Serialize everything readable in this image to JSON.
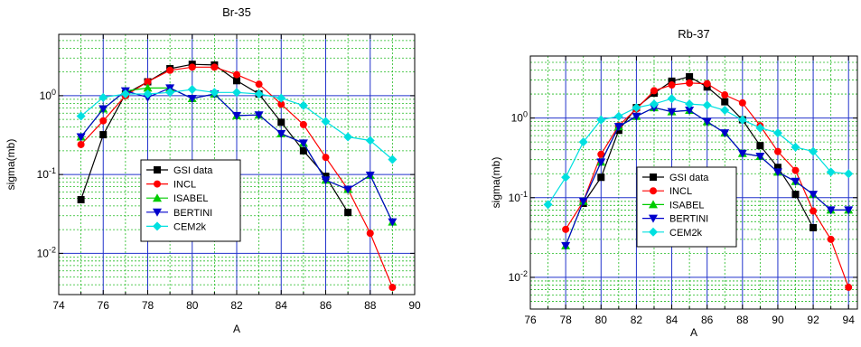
{
  "chart_data": [
    {
      "type": "line",
      "title": "Br-35",
      "xlabel": "A",
      "ylabel": "sigma(mb)",
      "xlim": [
        74,
        90
      ],
      "ylim": [
        0.003,
        6
      ],
      "yscale": "log",
      "grid": true,
      "legend_position": "center-left",
      "xticks": [
        "74",
        "76",
        "78",
        "80",
        "82",
        "84",
        "86",
        "88",
        "90"
      ],
      "yticks": [
        {
          "base": "10",
          "exp": "-2",
          "value": 0.01
        },
        {
          "base": "10",
          "exp": "-1",
          "value": 0.1
        },
        {
          "base": "10",
          "exp": "0",
          "value": 1
        }
      ],
      "series": [
        {
          "name": "GSI data",
          "color": "#000000",
          "marker": "square",
          "x": [
            75,
            76,
            77,
            78,
            79,
            80,
            81,
            82,
            83,
            84,
            85,
            86,
            87
          ],
          "y": [
            0.048,
            0.32,
            1.05,
            1.5,
            2.2,
            2.5,
            2.45,
            1.55,
            1.05,
            0.46,
            0.2,
            0.095,
            0.033
          ]
        },
        {
          "name": "INCL",
          "color": "#ff0000",
          "marker": "circle",
          "x": [
            75,
            76,
            77,
            78,
            79,
            80,
            81,
            82,
            83,
            84,
            85,
            86,
            87,
            88,
            89
          ],
          "y": [
            0.24,
            0.48,
            1.0,
            1.5,
            2.1,
            2.3,
            2.3,
            1.85,
            1.4,
            0.78,
            0.43,
            0.165,
            0.065,
            0.018,
            0.0037
          ]
        },
        {
          "name": "ISABEL",
          "color": "#00cc00",
          "marker": "triangle-up",
          "x": [
            75,
            76,
            77,
            78,
            79,
            80,
            81,
            82,
            83,
            84,
            85,
            86,
            87,
            88,
            89
          ],
          "y": [
            0.3,
            0.68,
            1.15,
            1.25,
            1.25,
            0.92,
            1.05,
            0.56,
            0.57,
            0.33,
            0.25,
            0.085,
            0.065,
            0.098,
            0.025
          ]
        },
        {
          "name": "BERTINI",
          "color": "#0000cc",
          "marker": "triangle-down",
          "x": [
            75,
            76,
            77,
            78,
            79,
            80,
            81,
            82,
            83,
            84,
            85,
            86,
            87,
            88,
            89
          ],
          "y": [
            0.3,
            0.68,
            1.15,
            0.95,
            1.25,
            0.92,
            1.05,
            0.56,
            0.57,
            0.33,
            0.25,
            0.085,
            0.065,
            0.098,
            0.025
          ]
        },
        {
          "name": "CEM2k",
          "color": "#00e0e0",
          "marker": "diamond",
          "x": [
            75,
            76,
            77,
            78,
            79,
            80,
            81,
            82,
            83,
            84,
            85,
            86,
            87,
            88,
            89
          ],
          "y": [
            0.55,
            0.95,
            1.05,
            1.05,
            1.1,
            1.2,
            1.1,
            1.1,
            1.05,
            0.93,
            0.75,
            0.47,
            0.3,
            0.27,
            0.155
          ]
        }
      ]
    },
    {
      "type": "line",
      "title": "Rb-37",
      "xlabel": "A",
      "ylabel": "sigma(mb)",
      "xlim": [
        76,
        94.5
      ],
      "ylim": [
        0.004,
        6
      ],
      "yscale": "log",
      "grid": true,
      "legend_position": "center",
      "xticks": [
        "76",
        "78",
        "80",
        "82",
        "84",
        "86",
        "88",
        "90",
        "92",
        "94"
      ],
      "yticks": [
        {
          "base": "10",
          "exp": "-2",
          "value": 0.01
        },
        {
          "base": "10",
          "exp": "-1",
          "value": 0.1
        },
        {
          "base": "10",
          "exp": "0",
          "value": 1
        }
      ],
      "series": [
        {
          "name": "GSI data",
          "color": "#000000",
          "marker": "square",
          "x": [
            79,
            80,
            81,
            82,
            83,
            84,
            85,
            86,
            87,
            88,
            89,
            90,
            91,
            92
          ],
          "y": [
            0.085,
            0.18,
            0.7,
            1.35,
            2.05,
            2.9,
            3.3,
            2.45,
            1.6,
            0.95,
            0.45,
            0.24,
            0.11,
            0.042
          ]
        },
        {
          "name": "INCL",
          "color": "#ff0000",
          "marker": "circle",
          "x": [
            78,
            79,
            80,
            81,
            82,
            83,
            84,
            85,
            86,
            87,
            88,
            89,
            90,
            91,
            92,
            93,
            94
          ],
          "y": [
            0.04,
            0.09,
            0.35,
            0.8,
            1.3,
            2.2,
            2.6,
            2.75,
            2.7,
            1.95,
            1.55,
            0.8,
            0.38,
            0.22,
            0.068,
            0.03,
            0.0075
          ]
        },
        {
          "name": "ISABEL",
          "color": "#00cc00",
          "marker": "triangle-up",
          "x": [
            78,
            79,
            80,
            81,
            82,
            83,
            84,
            85,
            86,
            87,
            88,
            89,
            90,
            91,
            92,
            93,
            94
          ],
          "y": [
            0.025,
            0.09,
            0.28,
            0.78,
            1.05,
            1.35,
            1.2,
            1.25,
            0.9,
            0.65,
            0.36,
            0.33,
            0.21,
            0.16,
            0.11,
            0.07,
            0.07
          ]
        },
        {
          "name": "BERTINI",
          "color": "#0000cc",
          "marker": "triangle-down",
          "x": [
            78,
            79,
            80,
            81,
            82,
            83,
            84,
            85,
            86,
            87,
            88,
            89,
            90,
            91,
            92,
            93,
            94
          ],
          "y": [
            0.025,
            0.09,
            0.28,
            0.78,
            1.05,
            1.35,
            1.2,
            1.25,
            0.9,
            0.65,
            0.36,
            0.33,
            0.21,
            0.16,
            0.11,
            0.07,
            0.07
          ]
        },
        {
          "name": "CEM2k",
          "color": "#00e0e0",
          "marker": "diamond",
          "x": [
            77,
            78,
            79,
            80,
            81,
            82,
            83,
            84,
            85,
            86,
            87,
            88,
            89,
            90,
            91,
            92,
            93,
            94
          ],
          "y": [
            0.082,
            0.18,
            0.5,
            0.95,
            1.05,
            1.35,
            1.5,
            1.75,
            1.5,
            1.45,
            1.25,
            0.95,
            0.75,
            0.65,
            0.43,
            0.38,
            0.21,
            0.2
          ]
        }
      ]
    }
  ]
}
